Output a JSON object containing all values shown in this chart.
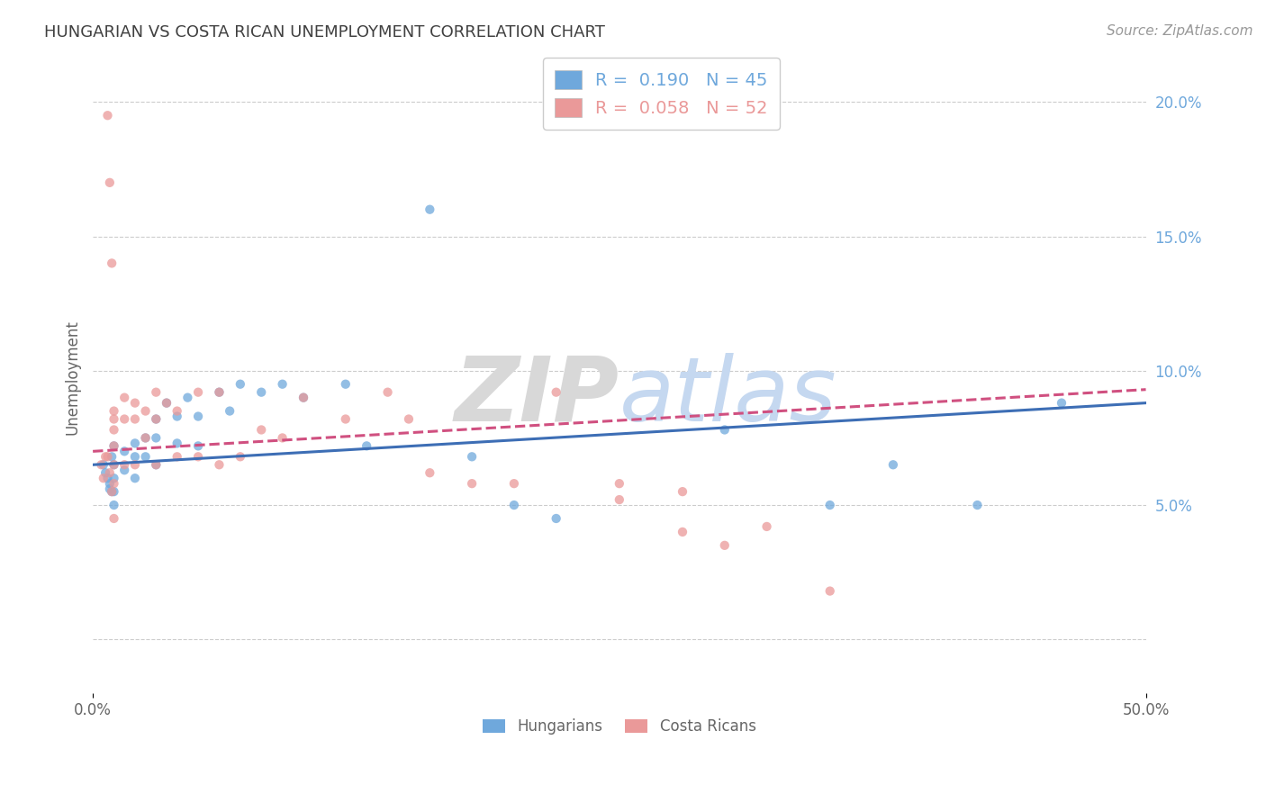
{
  "title": "HUNGARIAN VS COSTA RICAN UNEMPLOYMENT CORRELATION CHART",
  "source": "Source: ZipAtlas.com",
  "ylabel": "Unemployment",
  "watermark": "ZIPatlas",
  "xlim": [
    0.0,
    0.5
  ],
  "ylim": [
    -0.02,
    0.215
  ],
  "hungarian_color": "#6fa8dc",
  "costa_rican_color": "#ea9999",
  "hungarian_line_color": "#3d6eb5",
  "costa_rican_line_color": "#d05080",
  "legend_hungarian": "Hungarians",
  "legend_costa_rican": "Costa Ricans",
  "R_hungarian": 0.19,
  "N_hungarian": 45,
  "R_costa_rican": 0.058,
  "N_costa_rican": 52,
  "hungarian_x": [
    0.005,
    0.006,
    0.007,
    0.008,
    0.008,
    0.009,
    0.009,
    0.01,
    0.01,
    0.01,
    0.01,
    0.01,
    0.015,
    0.015,
    0.02,
    0.02,
    0.02,
    0.025,
    0.025,
    0.03,
    0.03,
    0.03,
    0.035,
    0.04,
    0.04,
    0.045,
    0.05,
    0.05,
    0.06,
    0.065,
    0.07,
    0.08,
    0.09,
    0.1,
    0.12,
    0.13,
    0.16,
    0.18,
    0.2,
    0.22,
    0.3,
    0.35,
    0.38,
    0.42,
    0.46
  ],
  "hungarian_y": [
    0.065,
    0.062,
    0.06,
    0.058,
    0.056,
    0.068,
    0.055,
    0.072,
    0.065,
    0.06,
    0.055,
    0.05,
    0.07,
    0.063,
    0.073,
    0.068,
    0.06,
    0.075,
    0.068,
    0.082,
    0.075,
    0.065,
    0.088,
    0.083,
    0.073,
    0.09,
    0.083,
    0.072,
    0.092,
    0.085,
    0.095,
    0.092,
    0.095,
    0.09,
    0.095,
    0.072,
    0.16,
    0.068,
    0.05,
    0.045,
    0.078,
    0.05,
    0.065,
    0.05,
    0.088
  ],
  "costa_rican_x": [
    0.004,
    0.005,
    0.006,
    0.007,
    0.007,
    0.008,
    0.008,
    0.009,
    0.009,
    0.01,
    0.01,
    0.01,
    0.01,
    0.01,
    0.01,
    0.01,
    0.015,
    0.015,
    0.015,
    0.02,
    0.02,
    0.02,
    0.025,
    0.025,
    0.03,
    0.03,
    0.03,
    0.035,
    0.04,
    0.04,
    0.05,
    0.05,
    0.06,
    0.06,
    0.07,
    0.08,
    0.09,
    0.1,
    0.12,
    0.14,
    0.15,
    0.16,
    0.18,
    0.2,
    0.22,
    0.25,
    0.25,
    0.28,
    0.28,
    0.3,
    0.32,
    0.35
  ],
  "costa_rican_y": [
    0.065,
    0.06,
    0.068,
    0.195,
    0.068,
    0.17,
    0.062,
    0.14,
    0.055,
    0.085,
    0.082,
    0.078,
    0.072,
    0.065,
    0.058,
    0.045,
    0.09,
    0.082,
    0.065,
    0.088,
    0.082,
    0.065,
    0.085,
    0.075,
    0.092,
    0.082,
    0.065,
    0.088,
    0.085,
    0.068,
    0.092,
    0.068,
    0.092,
    0.065,
    0.068,
    0.078,
    0.075,
    0.09,
    0.082,
    0.092,
    0.082,
    0.062,
    0.058,
    0.058,
    0.092,
    0.058,
    0.052,
    0.04,
    0.055,
    0.035,
    0.042,
    0.018
  ],
  "background_color": "#ffffff",
  "grid_color": "#cccccc",
  "title_color": "#404040",
  "source_color": "#999999",
  "ytick_color": "#6fa8dc",
  "yticks": [
    0.0,
    0.05,
    0.1,
    0.15,
    0.2
  ],
  "ytick_labels": [
    "",
    "5.0%",
    "10.0%",
    "15.0%",
    "20.0%"
  ]
}
